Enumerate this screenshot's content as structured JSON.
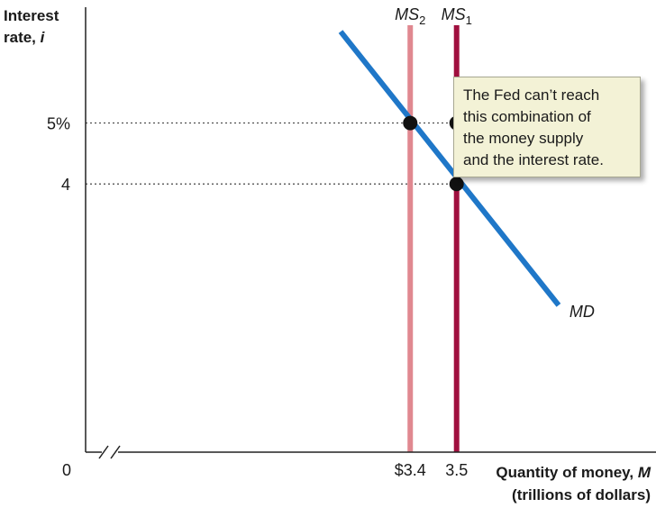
{
  "chart_data": {
    "type": "line",
    "ylabel_lines": [
      "Interest",
      "rate, i"
    ],
    "xlabel_lines": [
      "Quantity of money, M",
      "(trillions of dollars)"
    ],
    "origin_label": "0",
    "x_ticks": [
      {
        "value": 3.4,
        "label": "$3.4"
      },
      {
        "value": 3.5,
        "label": "3.5"
      }
    ],
    "y_ticks": [
      {
        "value": 5,
        "label": "5%"
      },
      {
        "value": 4,
        "label": "4"
      }
    ],
    "xlim": [
      2.7,
      3.93
    ],
    "ylim": [
      -0.4,
      6.9
    ],
    "series": [
      {
        "name": "MD",
        "kind": "demand",
        "color": "#1f77c8",
        "x": [
          3.25,
          3.72
        ],
        "y": [
          6.5,
          2.01
        ]
      },
      {
        "name": "MS2",
        "kind": "vertical",
        "color": "#e08890",
        "x_value": 3.4
      },
      {
        "name": "MS1",
        "kind": "vertical",
        "color": "#a0103f",
        "x_value": 3.5
      }
    ],
    "vertical_labels": [
      {
        "series": "MS2",
        "main": "MS",
        "sub": "2"
      },
      {
        "series": "MS1",
        "main": "MS",
        "sub": "1"
      }
    ],
    "md_label": "MD",
    "points": [
      {
        "x": 3.4,
        "y": 5
      },
      {
        "x": 3.5,
        "y": 5
      },
      {
        "x": 3.5,
        "y": 4
      }
    ],
    "axis_break": true,
    "grid": false,
    "annotation": {
      "lines": [
        "The Fed can’t reach",
        "this combination of",
        "the money supply",
        "and the interest rate."
      ],
      "points_to": {
        "x": 3.5,
        "y": 5
      }
    }
  }
}
